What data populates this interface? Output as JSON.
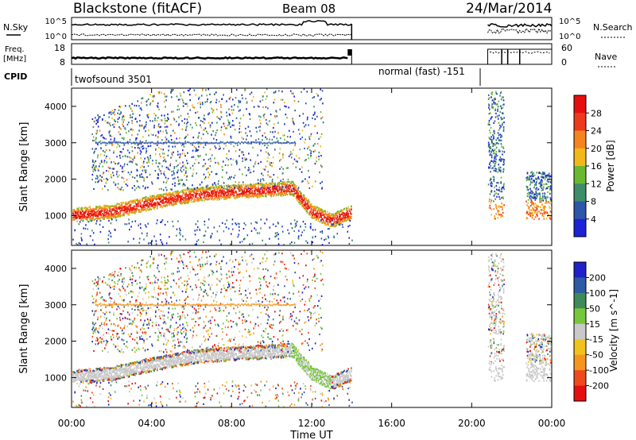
{
  "header": {
    "title": "Blackstone (fitACF)",
    "beam": "Beam 08",
    "date": "24/Mar/2014"
  },
  "noise_panel": {
    "left_label": "N.Sky",
    "right_label": "N.Search",
    "left_ticks": [
      "10^5",
      "10^0"
    ],
    "right_ticks": [
      "10^5",
      "10^0"
    ]
  },
  "freq_panel": {
    "left_label_1": "Freq.",
    "left_label_2": "[MHz]",
    "left_ticks": [
      "18",
      "8"
    ],
    "right_ticks": [
      "60",
      "0"
    ],
    "right_label": "Nave"
  },
  "cpid_panel": {
    "label": "CPID",
    "mode_1": "twofsound 3501",
    "mode_2": "normal (fast) -151"
  },
  "axes": {
    "ylabel": "Slant Range [km]",
    "xlabel": "Time UT",
    "y_ticks": [
      "1000",
      "2000",
      "3000",
      "4000"
    ],
    "x_ticks": [
      "00:00",
      "04:00",
      "08:00",
      "12:00",
      "16:00",
      "20:00",
      "00:00"
    ]
  },
  "power_scale": {
    "label": "Power [dB]",
    "ticks": [
      "4",
      "8",
      "12",
      "16",
      "20",
      "24",
      "28"
    ],
    "colors": [
      "#1c22d6",
      "#2c56a8",
      "#3d8c6a",
      "#6ab832",
      "#f2b817",
      "#f6841e",
      "#ee3a1c",
      "#e60f0f"
    ]
  },
  "velocity_scale": {
    "label": "Velocity [m s^-1]",
    "ticks": [
      "200",
      "100",
      "50",
      "15",
      "-15",
      "-50",
      "-100",
      "-200"
    ],
    "colors": [
      "#1f22c8",
      "#2f5aa4",
      "#3f8a5a",
      "#76c83a",
      "#c9c9c9",
      "#f2c21c",
      "#f4961e",
      "#ee4a1c",
      "#e60f0f"
    ]
  },
  "chart_data": [
    {
      "type": "heatmap",
      "title": "Power",
      "xlabel": "Time UT",
      "ylabel": "Slant Range [km]",
      "xlim": [
        0,
        24
      ],
      "ylim": [
        180,
        4500
      ],
      "colorbar": {
        "label": "Power [dB]",
        "range": [
          0,
          32
        ]
      },
      "data_windows_ut": [
        [
          0,
          14.0
        ],
        [
          20.8,
          21.6
        ],
        [
          22.7,
          24.0
        ]
      ],
      "main_echo_band_km": {
        "ut": [
          0,
          2,
          4,
          6,
          8,
          10,
          11,
          12,
          13,
          14
        ],
        "range_km": [
          1000,
          1100,
          1350,
          1550,
          1650,
          1700,
          1750,
          1100,
          850,
          1100
        ]
      }
    },
    {
      "type": "heatmap",
      "title": "Velocity",
      "xlabel": "Time UT",
      "ylabel": "Slant Range [km]",
      "xlim": [
        0,
        24
      ],
      "ylim": [
        180,
        4500
      ],
      "colorbar": {
        "label": "Velocity [m s^-1]",
        "range": [
          -250,
          250
        ]
      }
    }
  ]
}
